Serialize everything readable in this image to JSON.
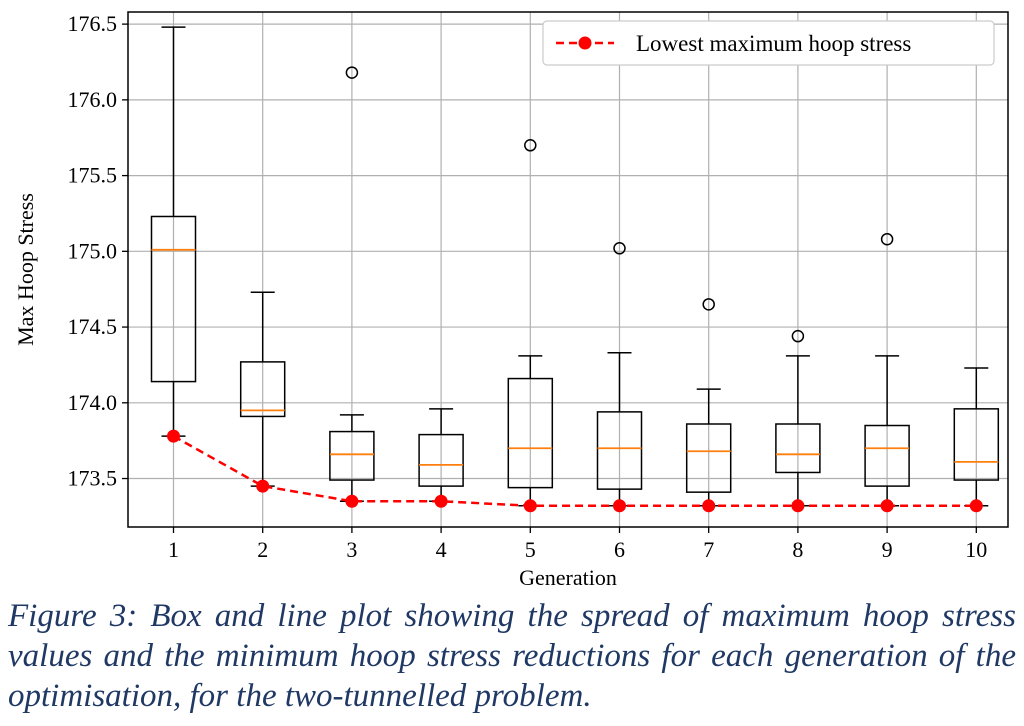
{
  "chart_data": {
    "type": "box",
    "xlabel": "Generation",
    "ylabel": "Max Hoop Stress",
    "categories": [
      "1",
      "2",
      "3",
      "4",
      "5",
      "6",
      "7",
      "8",
      "9",
      "10"
    ],
    "ylim": [
      173.18,
      176.58
    ],
    "yticks": [
      "173.5",
      "174.0",
      "174.5",
      "175.0",
      "175.5",
      "176.0",
      "176.5"
    ],
    "ytick_values": [
      173.5,
      174.0,
      174.5,
      175.0,
      175.5,
      176.0,
      176.5
    ],
    "grid": true,
    "legend": {
      "position": "top-right"
    },
    "boxes": [
      {
        "whislo": 173.78,
        "q1": 174.14,
        "med": 175.01,
        "q3": 175.23,
        "whishi": 176.48,
        "fliers": []
      },
      {
        "whislo": 173.45,
        "q1": 173.91,
        "med": 173.95,
        "q3": 174.27,
        "whishi": 174.73,
        "fliers": []
      },
      {
        "whislo": 173.35,
        "q1": 173.49,
        "med": 173.66,
        "q3": 173.81,
        "whishi": 173.92,
        "fliers": [
          176.18
        ]
      },
      {
        "whislo": 173.35,
        "q1": 173.45,
        "med": 173.59,
        "q3": 173.79,
        "whishi": 173.96,
        "fliers": []
      },
      {
        "whislo": 173.32,
        "q1": 173.44,
        "med": 173.7,
        "q3": 174.16,
        "whishi": 174.31,
        "fliers": [
          175.7
        ]
      },
      {
        "whislo": 173.32,
        "q1": 173.43,
        "med": 173.7,
        "q3": 173.94,
        "whishi": 174.33,
        "fliers": [
          175.02
        ]
      },
      {
        "whislo": 173.32,
        "q1": 173.41,
        "med": 173.68,
        "q3": 173.86,
        "whishi": 174.09,
        "fliers": [
          174.65
        ]
      },
      {
        "whislo": 173.32,
        "q1": 173.54,
        "med": 173.66,
        "q3": 173.86,
        "whishi": 174.31,
        "fliers": [
          174.44
        ]
      },
      {
        "whislo": 173.32,
        "q1": 173.45,
        "med": 173.7,
        "q3": 173.85,
        "whishi": 174.31,
        "fliers": [
          175.08
        ]
      },
      {
        "whislo": 173.32,
        "q1": 173.49,
        "med": 173.61,
        "q3": 173.96,
        "whishi": 174.23,
        "fliers": []
      }
    ],
    "series": [
      {
        "name": "Lowest maximum hoop stress",
        "style": "dashed-line-with-circle-markers",
        "color": "#ff0000",
        "values": [
          173.78,
          173.45,
          173.35,
          173.35,
          173.32,
          173.32,
          173.32,
          173.32,
          173.32,
          173.32
        ]
      }
    ],
    "colors": {
      "median": "#ff7f0e",
      "box": "#000000",
      "grid": "#b0b0b0"
    }
  },
  "caption": "Figure 3: Box and line plot showing the spread of maximum hoop stress values and the minimum hoop stress reductions for each generation of the optimisation, for the two-tunnelled problem."
}
